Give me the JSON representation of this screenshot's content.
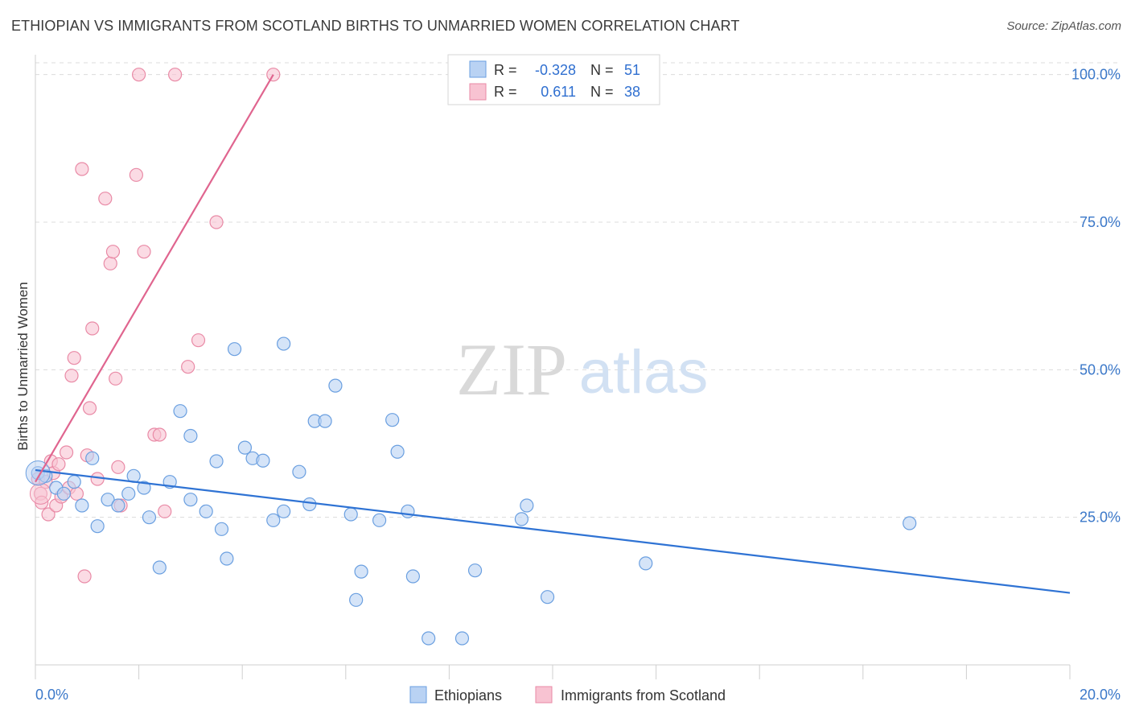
{
  "header": {
    "title": "ETHIOPIAN VS IMMIGRANTS FROM SCOTLAND BIRTHS TO UNMARRIED WOMEN CORRELATION CHART",
    "source": "Source: ZipAtlas.com"
  },
  "watermark": {
    "zip": "ZIP",
    "atlas": "atlas"
  },
  "colors": {
    "blue_fill": "#b9d2f3",
    "blue_stroke": "#6a9fe0",
    "blue_line": "#2f73d4",
    "pink_fill": "#f8c3d2",
    "pink_stroke": "#e98aa6",
    "pink_line": "#e0658f",
    "axis_label": "#3b78c9",
    "grid": "#dcdcdc"
  },
  "stats_legend": {
    "rows": [
      {
        "r_label": "R =",
        "r_value": "-0.328",
        "n_label": "N =",
        "n_value": "51"
      },
      {
        "r_label": "R =",
        "r_value": "0.611",
        "n_label": "N =",
        "n_value": "38"
      }
    ]
  },
  "chart_data": {
    "type": "scatter",
    "title": "ETHIOPIAN VS IMMIGRANTS FROM SCOTLAND BIRTHS TO UNMARRIED WOMEN CORRELATION CHART",
    "xlabel": "",
    "ylabel": "Births to Unmarried Women",
    "xlim": [
      0,
      20
    ],
    "ylim": [
      0,
      102
    ],
    "x_tick_labels": [
      "0.0%",
      "20.0%"
    ],
    "y_ticks": [
      25,
      50,
      75,
      100
    ],
    "y_tick_labels": [
      "25.0%",
      "50.0%",
      "75.0%",
      "100.0%"
    ],
    "grid": true,
    "legend_position": "bottom-center",
    "series": [
      {
        "name": "Ethiopians",
        "trend": {
          "x": [
            0,
            20
          ],
          "y": [
            33.0,
            12.2
          ]
        },
        "points": [
          [
            0.05,
            32.5
          ],
          [
            0.2,
            32.0
          ],
          [
            0.4,
            30.0
          ],
          [
            0.55,
            29.0
          ],
          [
            0.75,
            31.0
          ],
          [
            0.9,
            27.0
          ],
          [
            1.1,
            35.0
          ],
          [
            1.2,
            23.5
          ],
          [
            1.4,
            28.0
          ],
          [
            1.6,
            27.0
          ],
          [
            1.8,
            29.0
          ],
          [
            1.9,
            32.0
          ],
          [
            2.1,
            30.0
          ],
          [
            2.2,
            25.0
          ],
          [
            2.4,
            16.5
          ],
          [
            2.6,
            31.0
          ],
          [
            2.8,
            43.0
          ],
          [
            3.0,
            28.0
          ],
          [
            3.0,
            38.8
          ],
          [
            3.3,
            26.0
          ],
          [
            3.5,
            34.5
          ],
          [
            3.6,
            23.0
          ],
          [
            3.7,
            18.0
          ],
          [
            3.85,
            53.5
          ],
          [
            4.05,
            36.8
          ],
          [
            4.2,
            35.0
          ],
          [
            4.4,
            34.6
          ],
          [
            4.6,
            24.5
          ],
          [
            4.8,
            54.4
          ],
          [
            4.8,
            26.0
          ],
          [
            5.1,
            32.7
          ],
          [
            5.3,
            27.2
          ],
          [
            5.4,
            41.3
          ],
          [
            5.6,
            41.3
          ],
          [
            5.8,
            47.3
          ],
          [
            6.1,
            25.5
          ],
          [
            6.2,
            11.0
          ],
          [
            6.3,
            15.8
          ],
          [
            6.65,
            24.5
          ],
          [
            6.9,
            41.5
          ],
          [
            7.0,
            36.1
          ],
          [
            7.2,
            26.0
          ],
          [
            7.3,
            15.0
          ],
          [
            7.6,
            4.5
          ],
          [
            8.25,
            4.5
          ],
          [
            8.5,
            16.0
          ],
          [
            9.4,
            24.7
          ],
          [
            9.5,
            27.0
          ],
          [
            9.9,
            11.5
          ],
          [
            11.8,
            17.2
          ],
          [
            16.9,
            24.0
          ]
        ]
      },
      {
        "name": "Immigrants from Scotland",
        "trend": {
          "x": [
            0,
            4.6
          ],
          "y": [
            31.0,
            100.0
          ]
        },
        "points": [
          [
            0.05,
            31.5
          ],
          [
            0.1,
            29.0
          ],
          [
            0.12,
            27.5
          ],
          [
            0.25,
            25.5
          ],
          [
            0.3,
            34.5
          ],
          [
            0.35,
            32.5
          ],
          [
            0.4,
            27.0
          ],
          [
            0.45,
            34.0
          ],
          [
            0.5,
            28.5
          ],
          [
            0.6,
            36.0
          ],
          [
            0.65,
            30.0
          ],
          [
            0.7,
            49.0
          ],
          [
            0.75,
            52.0
          ],
          [
            0.8,
            29.0
          ],
          [
            0.9,
            84.0
          ],
          [
            0.95,
            15.0
          ],
          [
            1.0,
            35.5
          ],
          [
            1.05,
            43.5
          ],
          [
            1.1,
            57.0
          ],
          [
            1.2,
            31.5
          ],
          [
            1.35,
            79.0
          ],
          [
            1.45,
            68.0
          ],
          [
            1.5,
            70.0
          ],
          [
            1.55,
            48.5
          ],
          [
            1.6,
            33.5
          ],
          [
            1.65,
            27.0
          ],
          [
            1.95,
            83.0
          ],
          [
            2.0,
            100.0
          ],
          [
            2.1,
            70.0
          ],
          [
            2.3,
            39.0
          ],
          [
            2.4,
            39.0
          ],
          [
            2.5,
            26.0
          ],
          [
            2.7,
            100.0
          ],
          [
            2.95,
            50.5
          ],
          [
            3.15,
            55.0
          ],
          [
            3.5,
            75.0
          ],
          [
            4.6,
            100.0
          ],
          [
            0.2,
            31.0
          ]
        ]
      }
    ]
  }
}
